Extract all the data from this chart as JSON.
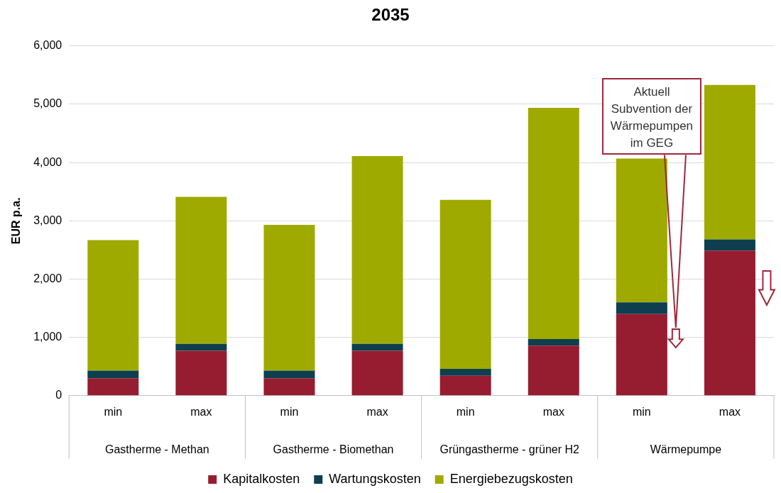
{
  "chart_data": {
    "type": "bar",
    "title": "2035",
    "ylabel": "EUR p.a.",
    "categories": [
      "min",
      "max",
      "min",
      "max",
      "min",
      "max",
      "min",
      "max"
    ],
    "series": [
      {
        "name": "Kapitalkosten",
        "color": "#961c30",
        "values": [
          300,
          770,
          300,
          770,
          340,
          860,
          1400,
          2490
        ]
      },
      {
        "name": "Wartungskosten",
        "color": "#0d3f4f",
        "values": [
          130,
          120,
          130,
          120,
          120,
          110,
          200,
          190
        ]
      },
      {
        "name": "Energiebezugskosten",
        "color": "#9faa00",
        "values": [
          2240,
          2520,
          2500,
          3220,
          2900,
          3970,
          2470,
          2650
        ]
      }
    ],
    "stacked": true,
    "ylim": [
      0,
      6000
    ],
    "yticks": [
      {
        "value": 0,
        "label": "0"
      },
      {
        "value": 1000,
        "label": "1,000"
      },
      {
        "value": 2000,
        "label": "2,000"
      },
      {
        "value": 3000,
        "label": "3,000"
      },
      {
        "value": 4000,
        "label": "4,000"
      },
      {
        "value": 5000,
        "label": "5,000"
      },
      {
        "value": 6000,
        "label": "6,000"
      }
    ],
    "grid": "y",
    "legend": "bottom",
    "annotations": [
      "Gastherme - Methan",
      "Gastherme - Biomethan",
      "Grüngastherme - grüner H2",
      "Wärmepumpe",
      "Aktuell Subvention der Wärmepumpen im GEG"
    ]
  }
}
